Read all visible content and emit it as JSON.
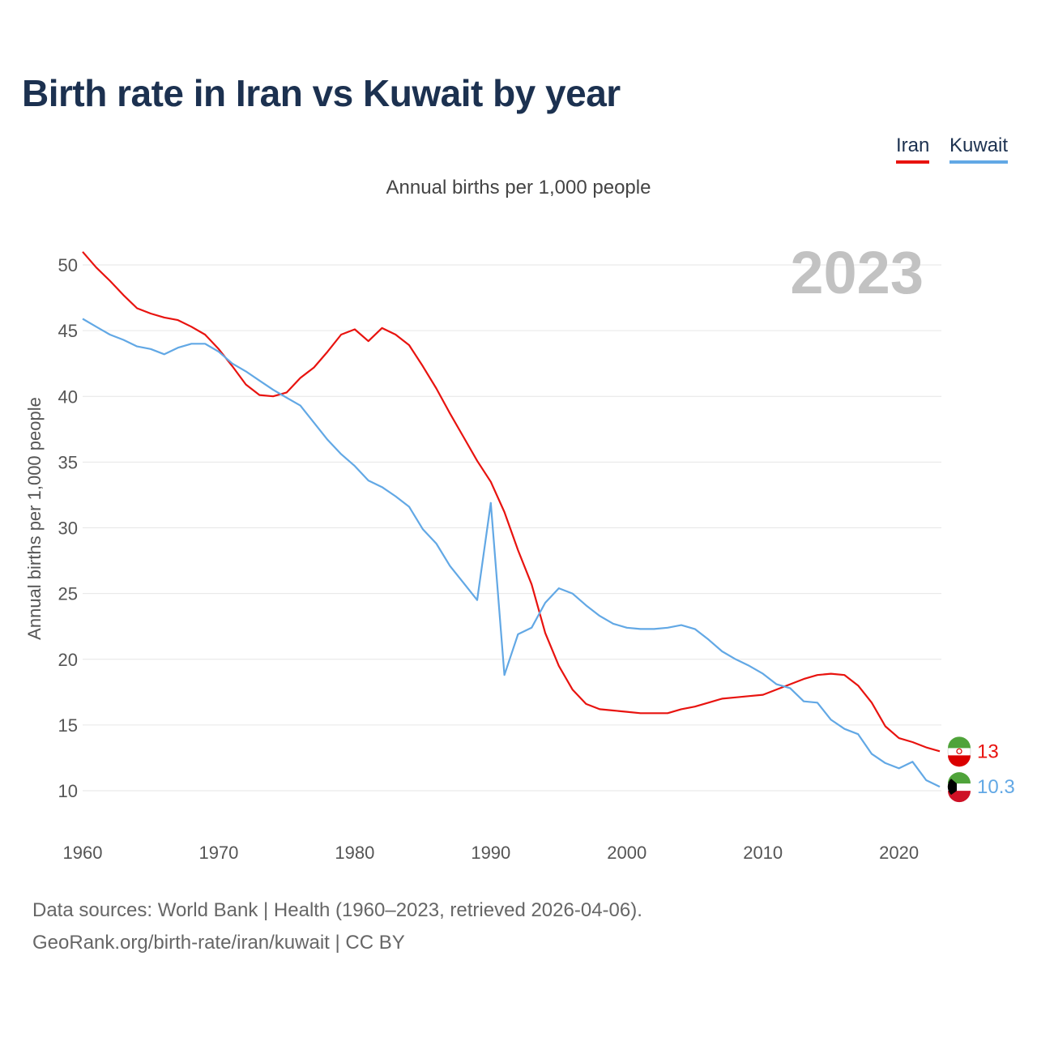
{
  "title": "Birth rate in Iran vs Kuwait by year",
  "subtitle": "Annual births per 1,000 people",
  "year_label": "2023",
  "legend": [
    {
      "name": "Iran",
      "color": "#e8130f"
    },
    {
      "name": "Kuwait",
      "color": "#62a8e5"
    }
  ],
  "footer": {
    "line1": "Data sources: World Bank | Health (1960–2023, retrieved 2026-04-06).",
    "line2": "GeoRank.org/birth-rate/iran/kuwait | CC BY"
  },
  "chart_data": {
    "type": "line",
    "title": "Birth rate in Iran vs Kuwait by year",
    "xlabel": "",
    "ylabel": "Annual births per 1,000 people",
    "xlim": [
      1960,
      2023
    ],
    "ylim": [
      7,
      53
    ],
    "xticks": [
      1960,
      1970,
      1980,
      1990,
      2000,
      2010,
      2020
    ],
    "yticks": [
      10,
      15,
      20,
      25,
      30,
      35,
      40,
      45,
      50
    ],
    "grid": true,
    "legend_position": "top-right",
    "x": [
      1960,
      1961,
      1962,
      1963,
      1964,
      1965,
      1966,
      1967,
      1968,
      1969,
      1970,
      1971,
      1972,
      1973,
      1974,
      1975,
      1976,
      1977,
      1978,
      1979,
      1980,
      1981,
      1982,
      1983,
      1984,
      1985,
      1986,
      1987,
      1988,
      1989,
      1990,
      1991,
      1992,
      1993,
      1994,
      1995,
      1996,
      1997,
      1998,
      1999,
      2000,
      2001,
      2002,
      2003,
      2004,
      2005,
      2006,
      2007,
      2008,
      2009,
      2010,
      2011,
      2012,
      2013,
      2014,
      2015,
      2016,
      2017,
      2018,
      2019,
      2020,
      2021,
      2022,
      2023
    ],
    "series": [
      {
        "name": "Iran",
        "color": "#e8130f",
        "end_label": "13",
        "values": [
          51.0,
          49.8,
          48.8,
          47.7,
          46.7,
          46.3,
          46.0,
          45.8,
          45.3,
          44.7,
          43.6,
          42.3,
          40.9,
          40.1,
          40.0,
          40.3,
          41.4,
          42.2,
          43.4,
          44.7,
          45.1,
          44.2,
          45.2,
          44.7,
          43.9,
          42.3,
          40.6,
          38.7,
          36.9,
          35.1,
          33.5,
          31.2,
          28.3,
          25.7,
          22.0,
          19.5,
          17.7,
          16.6,
          16.2,
          16.1,
          16.0,
          15.9,
          15.9,
          15.9,
          16.2,
          16.4,
          16.7,
          17.0,
          17.1,
          17.2,
          17.3,
          17.7,
          18.1,
          18.5,
          18.8,
          18.9,
          18.8,
          18.0,
          16.7,
          14.9,
          14.0,
          13.7,
          13.3,
          13.0
        ]
      },
      {
        "name": "Kuwait",
        "color": "#62a8e5",
        "end_label": "10.3",
        "values": [
          45.9,
          45.3,
          44.7,
          44.3,
          43.8,
          43.6,
          43.2,
          43.7,
          44.0,
          44.0,
          43.4,
          42.5,
          41.9,
          41.2,
          40.5,
          39.9,
          39.3,
          38.0,
          36.7,
          35.6,
          34.7,
          33.6,
          33.1,
          32.4,
          31.6,
          29.9,
          28.8,
          27.1,
          25.8,
          24.5,
          31.9,
          18.8,
          21.9,
          22.4,
          24.3,
          25.4,
          25.0,
          24.1,
          23.3,
          22.7,
          22.4,
          22.3,
          22.3,
          22.4,
          22.6,
          22.3,
          21.5,
          20.6,
          20.0,
          19.5,
          18.9,
          18.1,
          17.8,
          16.8,
          16.7,
          15.4,
          14.7,
          14.3,
          12.8,
          12.1,
          11.7,
          12.2,
          10.8,
          10.3
        ]
      }
    ]
  }
}
